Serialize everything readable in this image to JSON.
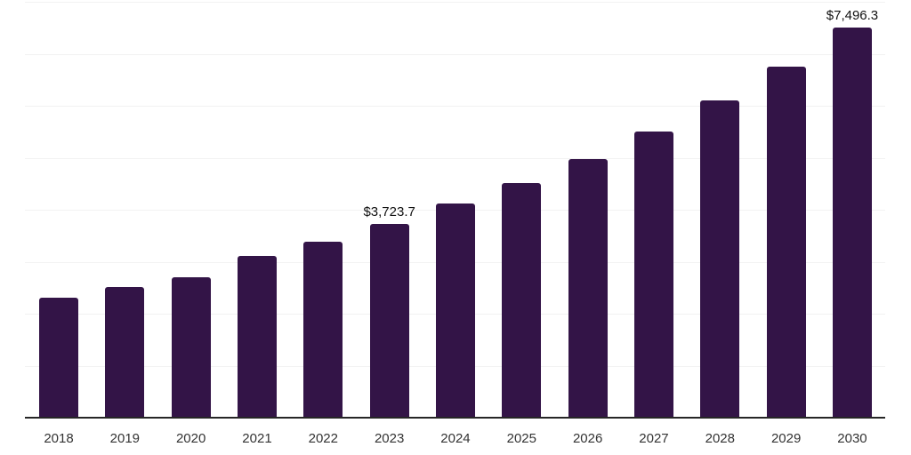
{
  "chart_data": {
    "type": "bar",
    "title": "",
    "categories": [
      "2018",
      "2019",
      "2020",
      "2021",
      "2022",
      "2023",
      "2024",
      "2025",
      "2026",
      "2027",
      "2028",
      "2029",
      "2030"
    ],
    "values": [
      2310,
      2510,
      2700,
      3105,
      3390,
      3723.7,
      4115,
      4515,
      4970,
      5500,
      6100,
      6750,
      7496.3
    ],
    "data_labels": {
      "2023": "$3,723.7",
      "2030": "$7,496.3"
    },
    "xlabel": "",
    "ylabel": "",
    "ylim": [
      0,
      8000
    ],
    "gridline_interval": 1000,
    "grid": true,
    "legend": false,
    "y_axis_labels_visible": false,
    "colors": {
      "bar": "#331447",
      "gridline": "#f2f2f2",
      "axis": "#262626",
      "tick_label": "#333333",
      "data_label": "#111111"
    }
  }
}
